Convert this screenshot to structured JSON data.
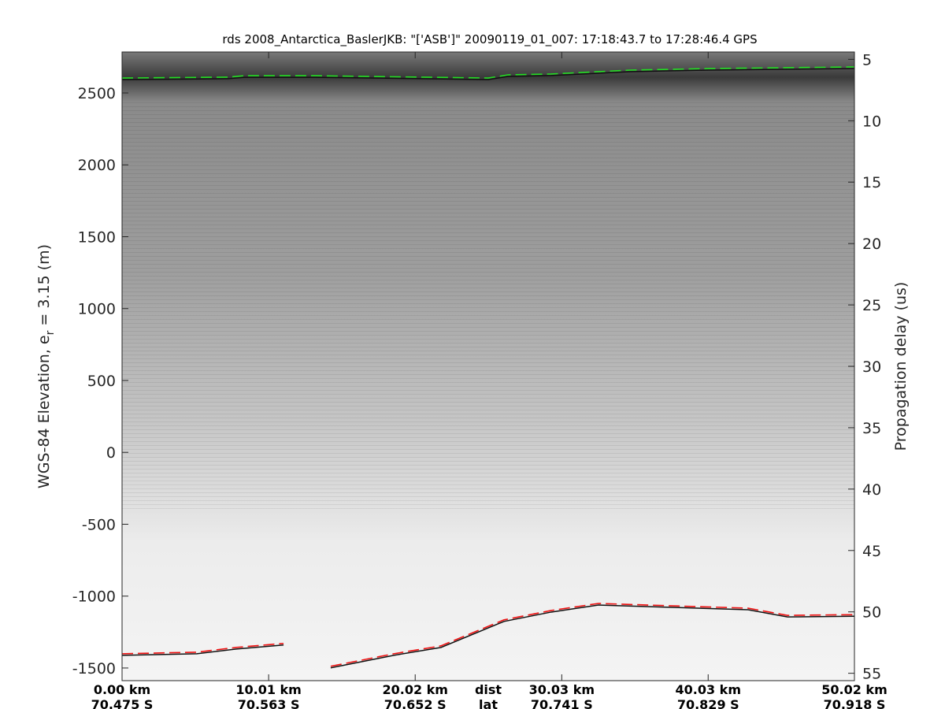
{
  "chart_data": {
    "type": "line",
    "title": "rds 2008_Antarctica_BaslerJKB: \"['ASB']\"  20090119_01_007: 17:18:43.7 to 17:28:46.4 GPS",
    "ylabel": "WGS-84 Elevation, e_r = 3.15 (m)",
    "ylabel_main": "WGS-84 Elevation, e",
    "ylabel_sub": "r",
    "ylabel_tail": " = 3.15 (m)",
    "y2label": "Propagation delay (us)",
    "ylim": [
      -1588,
      2785
    ],
    "y2lim": [
      4.4,
      55.6
    ],
    "xlim": [
      0,
      50.02
    ],
    "yticks": [
      "2500",
      "2000",
      "1500",
      "1000",
      "500",
      "0",
      "-500",
      "-1000",
      "-1500"
    ],
    "ytick_values": [
      2500,
      2000,
      1500,
      1000,
      500,
      0,
      -500,
      -1000,
      -1500
    ],
    "y2ticks": [
      "5",
      "10",
      "15",
      "20",
      "25",
      "30",
      "35",
      "40",
      "45",
      "50",
      "55"
    ],
    "y2tick_values": [
      5,
      10,
      15,
      20,
      25,
      30,
      35,
      40,
      45,
      50,
      55
    ],
    "xtick_values": [
      0,
      10.01,
      20.02,
      30.03,
      40.03,
      50.02
    ],
    "xticks_dist": [
      "0.00 km",
      "10.01 km",
      "20.02 km",
      "30.03 km",
      "40.03 km",
      "50.02 km"
    ],
    "xticks_lat": [
      "70.475 S",
      "70.563 S",
      "70.652 S",
      "70.741 S",
      "70.829 S",
      "70.918 S"
    ],
    "x_dist_label": "dist",
    "x_lat_label": "lat",
    "background": "radar echogram (grayscale)",
    "series": [
      {
        "color": "#22dd22",
        "style": "dashed",
        "x": [
          0,
          7.26,
          8.34,
          13.18,
          25.01,
          26.36,
          29.31,
          34.69,
          40.07,
          50.02
        ],
        "y": [
          2604,
          2610,
          2620,
          2620,
          2604,
          2626,
          2632,
          2659,
          2670,
          2681
        ]
      },
      {
        "color": "#ee1111",
        "style": "dashed",
        "segments": [
          {
            "x": [
              0,
              5.11,
              7.8,
              11.03
            ],
            "y": [
              -1401,
              -1390,
              -1357,
              -1329
            ]
          },
          {
            "x": [
              14.25,
              18.56,
              21.78,
              26.09,
              29.31,
              32.54,
              37.38,
              42.76,
              45.45,
              50.02
            ],
            "y": [
              -1488,
              -1401,
              -1346,
              -1165,
              -1100,
              -1051,
              -1067,
              -1084,
              -1134,
              -1129
            ]
          }
        ]
      }
    ]
  }
}
